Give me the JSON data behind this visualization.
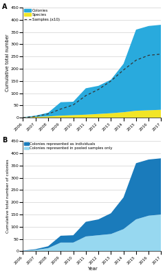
{
  "years": [
    2006,
    2007,
    2008,
    2009,
    2010,
    2011,
    2012,
    2013,
    2014,
    2015,
    2016,
    2017
  ],
  "colonies": [
    2,
    8,
    20,
    63,
    65,
    120,
    130,
    155,
    220,
    360,
    375,
    380
  ],
  "species": [
    1,
    3,
    5,
    8,
    10,
    12,
    15,
    18,
    22,
    28,
    30,
    32
  ],
  "samples_x10": [
    0,
    5,
    15,
    35,
    52,
    90,
    115,
    150,
    195,
    235,
    255,
    260
  ],
  "pooled_only": [
    1,
    5,
    12,
    35,
    35,
    60,
    65,
    70,
    90,
    130,
    145,
    150
  ],
  "individuals": [
    1,
    3,
    8,
    28,
    30,
    60,
    65,
    85,
    130,
    230,
    230,
    230
  ],
  "color_blue": "#29AADD",
  "color_yellow": "#F2E526",
  "color_dark_blue": "#1A7BBB",
  "color_light_blue": "#97D8F0",
  "color_dashed": "#333333",
  "ylabel_a": "Cumulative total number",
  "ylabel_b": "Cumulative total number of colonies",
  "xlabel": "Year",
  "ylim": [
    0,
    450
  ],
  "legend_a": [
    "Colonies",
    "Species",
    "Samples (x10)"
  ],
  "legend_b": [
    "Colonies represented as individuals",
    "Colonies represented in pooled samples only"
  ],
  "label_a": "A",
  "label_b": "B",
  "yticks": [
    0,
    50,
    100,
    150,
    200,
    250,
    300,
    350,
    400,
    450
  ],
  "grid_color": "#d0d0d0",
  "bg_color": "#ffffff"
}
